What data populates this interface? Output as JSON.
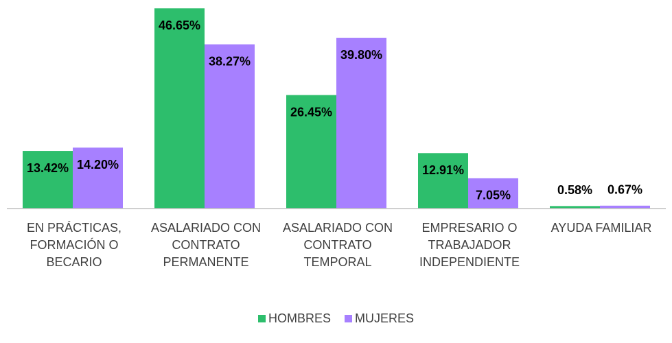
{
  "chart_data": {
    "type": "bar",
    "categories": [
      "EN PRÁCTICAS, FORMACIÓN O BECARIO",
      "ASALARIADO CON CONTRATO PERMANENTE",
      "ASALARIADO CON CONTRATO TEMPORAL",
      "EMPRESARIO O TRABAJADOR INDEPENDIENTE",
      "AYUDA FAMILIAR"
    ],
    "series": [
      {
        "name": "HOMBRES",
        "color": "#2dbe6c",
        "values": [
          13.42,
          46.65,
          26.45,
          12.91,
          0.58
        ],
        "value_labels": [
          "13.42%",
          "46.65%",
          "26.45%",
          "12.91%",
          "0.58%"
        ]
      },
      {
        "name": "MUJERES",
        "color": "#a780ff",
        "values": [
          14.2,
          38.27,
          39.8,
          7.05,
          0.67
        ],
        "value_labels": [
          "14.20%",
          "38.27%",
          "39.80%",
          "7.05%",
          "0.67%"
        ]
      }
    ],
    "ylim": [
      0,
      47
    ],
    "legend": "bottom"
  }
}
